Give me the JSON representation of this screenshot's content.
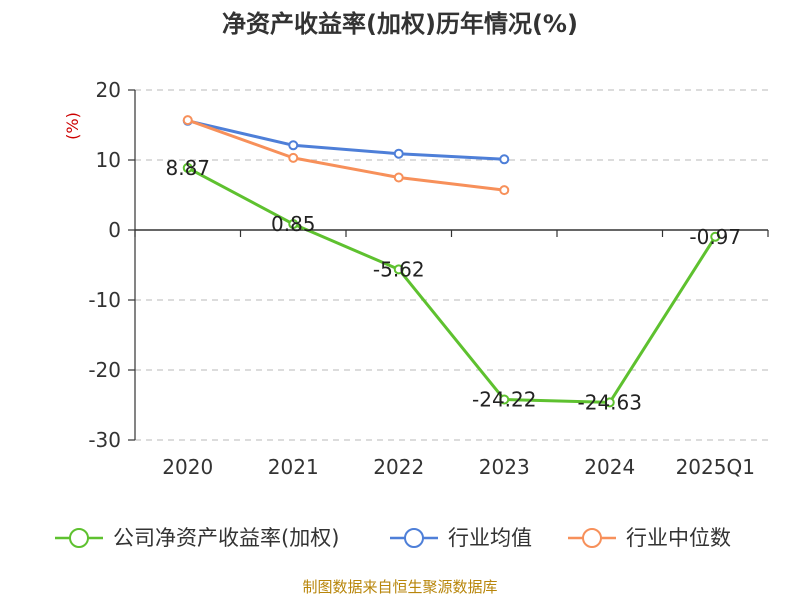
{
  "chart_data": {
    "type": "line",
    "title": "净资产收益率(加权)历年情况(%)",
    "ylabel": "(%)",
    "categories": [
      "2020",
      "2021",
      "2022",
      "2023",
      "2024",
      "2025Q1"
    ],
    "yticks": [
      "20",
      "10",
      "0",
      "-10",
      "-20",
      "-30"
    ],
    "ylim": [
      -30,
      20
    ],
    "grid": true,
    "legend": "bottom",
    "series": [
      {
        "name": "公司净资产收益率(加权)",
        "color": "#5ec12f",
        "values": [
          8.87,
          0.85,
          -5.62,
          -24.22,
          -24.63,
          -0.97
        ],
        "labels": [
          "8.87",
          "0.85",
          "-5.62",
          "-24.22",
          "-24.63",
          "-0.97"
        ]
      },
      {
        "name": "行业均值",
        "color": "#4e7fd8",
        "values": [
          15.6,
          12.1,
          10.9,
          10.1,
          null,
          null
        ]
      },
      {
        "name": "行业中位数",
        "color": "#f7905a",
        "values": [
          15.7,
          10.3,
          7.5,
          5.7,
          null,
          null
        ]
      }
    ]
  },
  "source": "制图数据来自恒生聚源数据库"
}
